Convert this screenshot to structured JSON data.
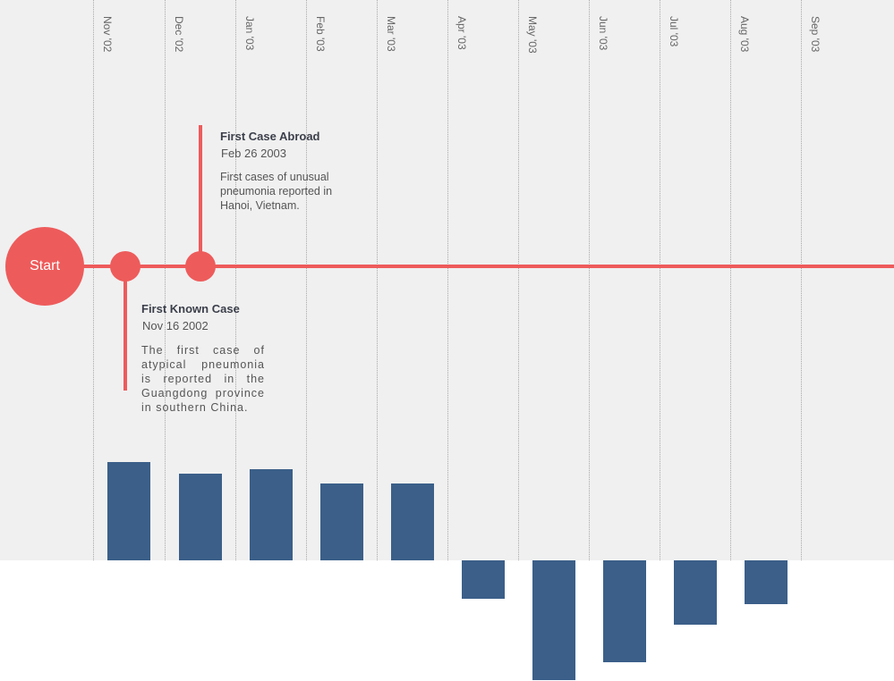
{
  "timeline": {
    "start_label": "Start",
    "events": [
      {
        "title": "First Known Case",
        "date": "Nov 16 2002",
        "description": "The first case of atypical pneumonia is reported in the Guangdong province in southern China."
      },
      {
        "title": "First Case Abroad",
        "date": "Feb 26 2003",
        "description": "First cases of unusual pneumonia reported in Hanoi, Vietnam."
      }
    ]
  },
  "chart_data": {
    "type": "bar",
    "categories": [
      "Nov '02",
      "Dec '02",
      "Jan '03",
      "Feb '03",
      "Mar '03",
      "Apr '03",
      "May '03",
      "Jun '03",
      "Jul '03",
      "Aug '03",
      "Sep '03"
    ],
    "values": [
      110,
      97,
      102,
      86,
      86,
      -43,
      -134,
      -114,
      -72,
      -49,
      null
    ],
    "xlabel": "",
    "ylabel": "",
    "grid": "vertical dotted",
    "colors": {
      "bars": "#3b5f89",
      "timeline": "#ee5b5b",
      "panel": "#f0f0f0"
    }
  }
}
